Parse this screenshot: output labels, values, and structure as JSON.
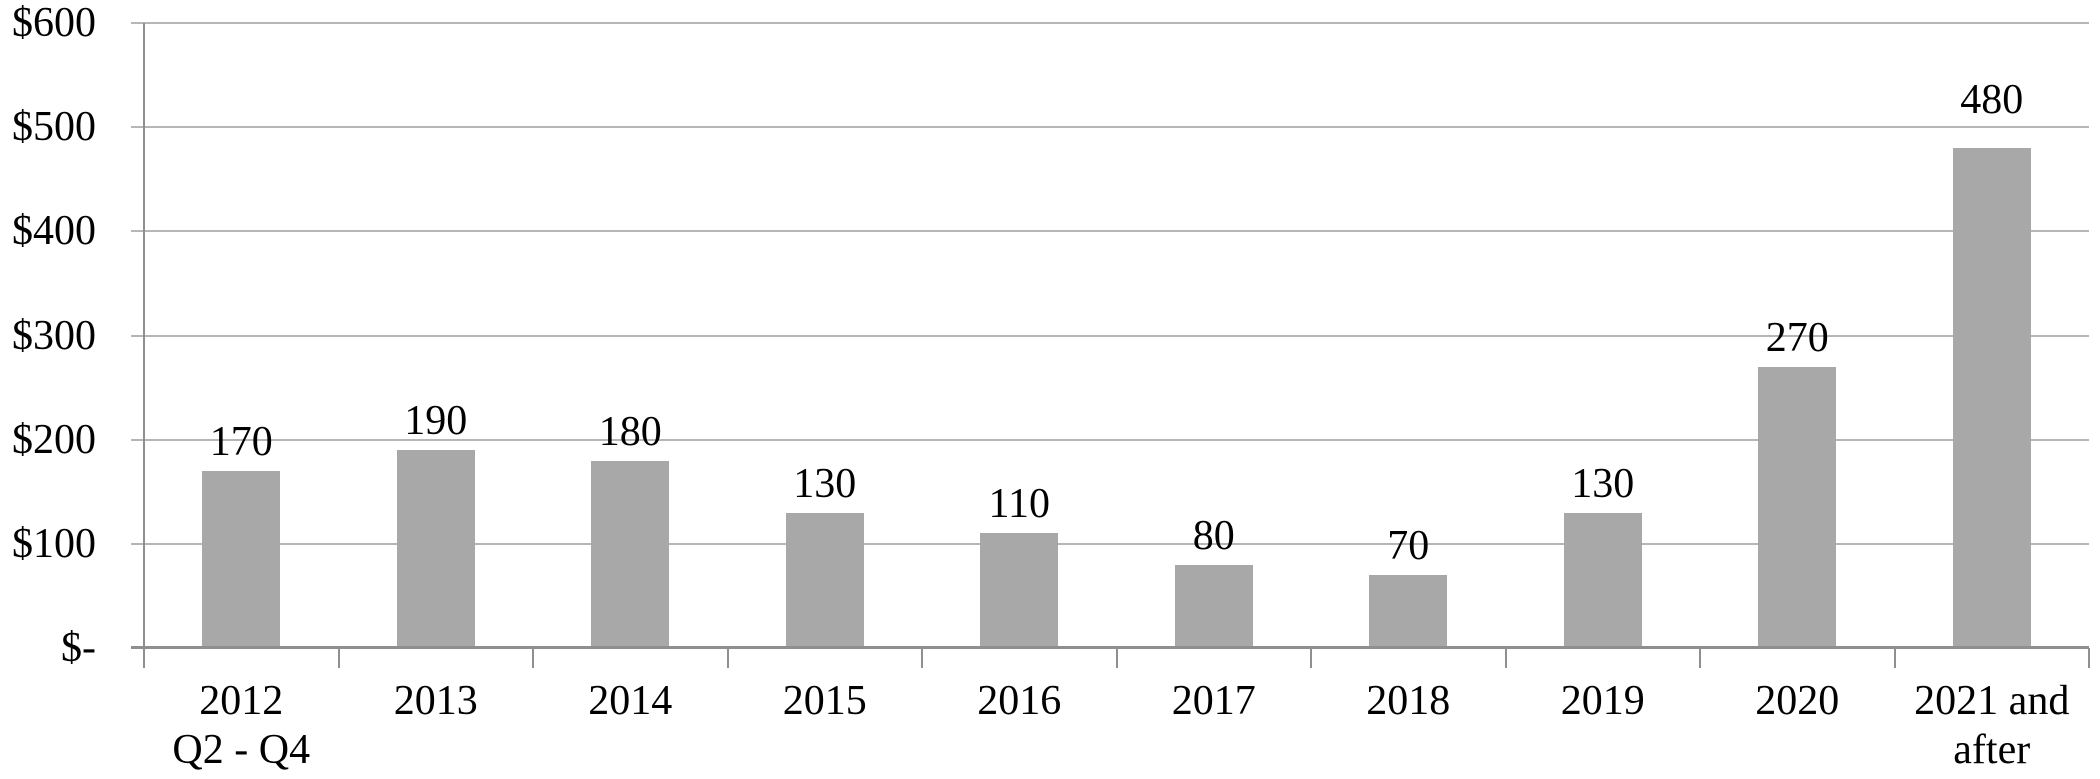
{
  "chart_data": {
    "type": "bar",
    "title": "",
    "xlabel": "",
    "ylabel": "",
    "categories": [
      "2012\nQ2 - Q4",
      "2013",
      "2014",
      "2015",
      "2016",
      "2017",
      "2018",
      "2019",
      "2020",
      "2021 and\nafter"
    ],
    "values": [
      170,
      190,
      180,
      130,
      110,
      80,
      70,
      130,
      270,
      480
    ],
    "y_tick_labels": [
      "$-",
      "$100",
      "$200",
      "$300",
      "$400",
      "$500",
      "$600"
    ],
    "y_tick_values": [
      0,
      100,
      200,
      300,
      400,
      500,
      600
    ],
    "ylim": [
      0,
      600
    ],
    "grid": "horizontal",
    "legend_position": "none",
    "value_label_position": "outside-end",
    "value_label_gaps": [
      8,
      8,
      8,
      8,
      8,
      8,
      8,
      8,
      8,
      27
    ],
    "colors": {
      "bar": "#a8a8a8",
      "gridline": "#b6b6b6",
      "axis": "#8f8f8f",
      "text": "#000000"
    }
  }
}
